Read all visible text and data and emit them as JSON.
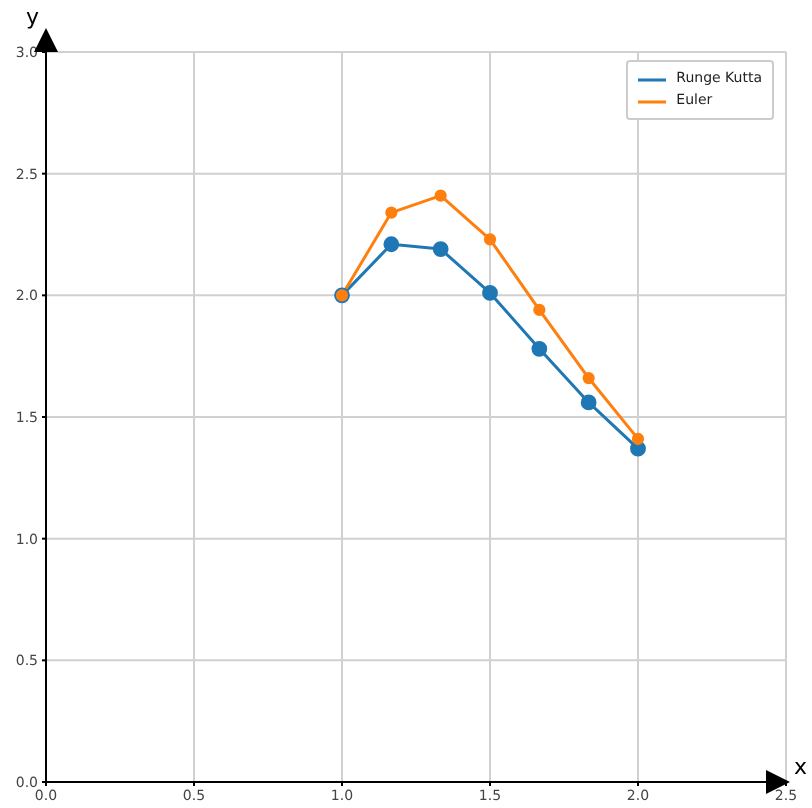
{
  "chart_data": {
    "type": "line",
    "xlabel": "x",
    "ylabel": "y",
    "x": [
      1,
      1.1667,
      1.3333,
      1.5,
      1.6667,
      1.8333,
      2
    ],
    "series": [
      {
        "name": "Runge Kutta",
        "color": "#1f77b4",
        "values": [
          2.0,
          2.21,
          2.19,
          2.01,
          1.78,
          1.56,
          1.37
        ]
      },
      {
        "name": "Euler",
        "color": "#ff7f0e",
        "values": [
          2.0,
          2.34,
          2.41,
          2.23,
          1.94,
          1.66,
          1.41
        ]
      }
    ],
    "xlim": [
      0,
      2.5
    ],
    "ylim": [
      0,
      3
    ],
    "xticks": [
      {
        "value": 0,
        "label": "0.0"
      },
      {
        "value": 0.5,
        "label": "0.5"
      },
      {
        "value": 1,
        "label": "1.0"
      },
      {
        "value": 1.5,
        "label": "1.5"
      },
      {
        "value": 2,
        "label": "2.0"
      },
      {
        "value": 2.5,
        "label": "2.5"
      }
    ],
    "yticks": [
      {
        "value": 0,
        "label": "0.0"
      },
      {
        "value": 0.5,
        "label": "0.5"
      },
      {
        "value": 1,
        "label": "1.0"
      },
      {
        "value": 1.5,
        "label": "1.5"
      },
      {
        "value": 2,
        "label": "2.0"
      },
      {
        "value": 2.5,
        "label": "2.5"
      },
      {
        "value": 3,
        "label": "3.0"
      }
    ],
    "grid": true,
    "legend": "top right",
    "marker": "circle",
    "line_style": "solid"
  }
}
